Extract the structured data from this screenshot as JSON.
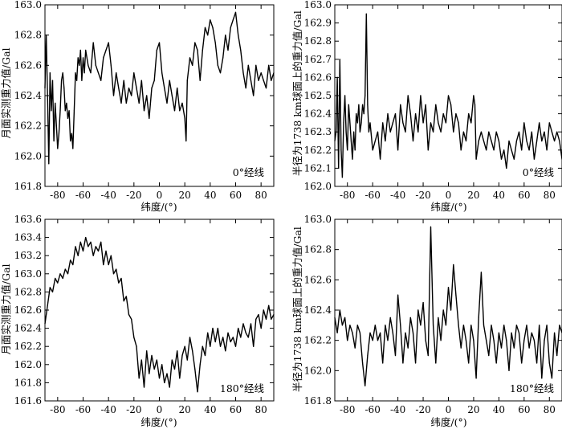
{
  "chart_data": [
    {
      "type": "line",
      "xlabel": "纬度/(°)",
      "ylabel": "月面实测重力值/Gal",
      "annotation": "0°经线",
      "annotation_position": "bottom-right",
      "xlim": [
        -90,
        90
      ],
      "ylim": [
        161.8,
        163.0
      ],
      "xticks": [
        -80,
        -60,
        -40,
        -20,
        0,
        20,
        40,
        60,
        80
      ],
      "yticks": [
        "161.8",
        "162.0",
        "162.2",
        "162.4",
        "162.6",
        "162.8",
        "163.0"
      ],
      "series": [
        {
          "x": [
            -90,
            -89,
            -88,
            -87,
            -86,
            -85,
            -84,
            -83,
            -82,
            -81,
            -80,
            -79,
            -78,
            -77,
            -76,
            -75,
            -74,
            -73,
            -72,
            -71,
            -70,
            -69,
            -68,
            -67,
            -66,
            -65,
            -64,
            -63,
            -62,
            -61,
            -60,
            -59,
            -58,
            -56,
            -54,
            -52,
            -50,
            -48,
            -46,
            -44,
            -42,
            -40,
            -38,
            -36,
            -34,
            -32,
            -30,
            -28,
            -26,
            -24,
            -22,
            -20,
            -18,
            -16,
            -14,
            -12,
            -10,
            -8,
            -6,
            -4,
            -2,
            0,
            2,
            4,
            6,
            8,
            10,
            12,
            14,
            16,
            18,
            20,
            21,
            22,
            24,
            26,
            28,
            30,
            32,
            34,
            36,
            38,
            40,
            42,
            44,
            46,
            48,
            50,
            52,
            54,
            56,
            58,
            60,
            62,
            64,
            66,
            68,
            70,
            72,
            74,
            76,
            78,
            80,
            82,
            84,
            86,
            88,
            90
          ],
          "values": [
            162.45,
            162.8,
            162.4,
            161.95,
            162.55,
            162.3,
            162.5,
            162.1,
            162.35,
            162.2,
            162.05,
            162.15,
            162.3,
            162.5,
            162.55,
            162.45,
            162.3,
            162.35,
            162.25,
            162.3,
            162.1,
            162.15,
            162.05,
            162.3,
            162.55,
            162.5,
            162.65,
            162.6,
            162.7,
            162.5,
            162.65,
            162.55,
            162.7,
            162.6,
            162.55,
            162.75,
            162.6,
            162.55,
            162.5,
            162.65,
            162.7,
            162.75,
            162.6,
            162.4,
            162.55,
            162.45,
            162.35,
            162.5,
            162.35,
            162.45,
            162.4,
            162.55,
            162.45,
            162.35,
            162.5,
            162.3,
            162.4,
            162.25,
            162.45,
            162.5,
            162.7,
            162.75,
            162.55,
            162.45,
            162.35,
            162.5,
            162.4,
            162.3,
            162.45,
            162.3,
            162.35,
            162.25,
            162.1,
            162.5,
            162.65,
            162.6,
            162.75,
            162.7,
            162.5,
            162.7,
            162.85,
            162.8,
            162.9,
            162.85,
            162.75,
            162.6,
            162.55,
            162.65,
            162.8,
            162.7,
            162.85,
            162.9,
            162.95,
            162.8,
            162.7,
            162.55,
            162.45,
            162.6,
            162.5,
            162.4,
            162.6,
            162.5,
            162.55,
            162.5,
            162.45,
            162.6,
            162.5,
            162.55
          ]
        }
      ]
    },
    {
      "type": "line",
      "xlabel": "纬度/(°)",
      "ylabel": "半径为1738 km球面上的重力值/Gal",
      "annotation": "0°经线",
      "annotation_position": "bottom-right",
      "xlim": [
        -90,
        90
      ],
      "ylim": [
        162.0,
        163.0
      ],
      "xticks": [
        -80,
        -60,
        -40,
        -20,
        0,
        20,
        40,
        60,
        80
      ],
      "yticks": [
        "162.0",
        "162.1",
        "162.2",
        "162.3",
        "162.4",
        "162.5",
        "162.6",
        "162.7",
        "162.8",
        "162.9",
        "163.0"
      ],
      "series": [
        {
          "x": [
            -90,
            -89,
            -88,
            -87,
            -86,
            -85,
            -84,
            -83,
            -82,
            -81,
            -80,
            -79,
            -78,
            -77,
            -76,
            -75,
            -74,
            -73,
            -72,
            -71,
            -70,
            -69,
            -68,
            -67,
            -66,
            -65,
            -64,
            -63,
            -62,
            -60,
            -58,
            -56,
            -54,
            -52,
            -50,
            -48,
            -46,
            -44,
            -42,
            -40,
            -38,
            -36,
            -34,
            -32,
            -30,
            -28,
            -26,
            -24,
            -22,
            -20,
            -18,
            -16,
            -14,
            -12,
            -10,
            -8,
            -6,
            -4,
            -2,
            0,
            2,
            4,
            6,
            8,
            10,
            12,
            14,
            16,
            18,
            20,
            21,
            22,
            24,
            26,
            28,
            30,
            32,
            34,
            36,
            38,
            40,
            42,
            44,
            46,
            48,
            50,
            52,
            54,
            56,
            58,
            60,
            62,
            64,
            66,
            68,
            70,
            72,
            74,
            76,
            78,
            80,
            82,
            84,
            86,
            88,
            90
          ],
          "values": [
            162.25,
            162.3,
            162.6,
            162.1,
            162.7,
            162.2,
            162.05,
            162.35,
            162.5,
            162.3,
            162.2,
            162.45,
            162.35,
            162.25,
            162.15,
            162.3,
            162.2,
            162.4,
            162.35,
            162.45,
            162.3,
            162.35,
            162.45,
            162.4,
            162.5,
            162.95,
            162.45,
            162.3,
            162.35,
            162.2,
            162.25,
            162.3,
            162.15,
            162.35,
            162.25,
            162.4,
            162.3,
            162.35,
            162.4,
            162.2,
            162.45,
            162.35,
            162.3,
            162.5,
            162.4,
            162.25,
            162.4,
            162.3,
            162.5,
            162.35,
            162.45,
            162.2,
            162.35,
            162.3,
            162.45,
            162.35,
            162.3,
            162.4,
            162.35,
            162.5,
            162.45,
            162.3,
            162.4,
            162.35,
            162.2,
            162.3,
            162.25,
            162.4,
            162.35,
            162.5,
            162.45,
            162.15,
            162.25,
            162.3,
            162.25,
            162.2,
            162.3,
            162.25,
            162.2,
            162.3,
            162.25,
            162.15,
            162.2,
            162.1,
            162.25,
            162.2,
            162.15,
            162.25,
            162.3,
            162.2,
            162.35,
            162.25,
            162.2,
            162.3,
            162.15,
            162.25,
            162.35,
            162.25,
            162.3,
            162.2,
            162.35,
            162.3,
            162.25,
            162.3,
            162.25,
            162.15
          ]
        }
      ]
    },
    {
      "type": "line",
      "xlabel": "纬度/(°)",
      "ylabel": "月面实测重力值/Gal",
      "annotation": "180°经线",
      "annotation_position": "bottom-right",
      "xlim": [
        -90,
        90
      ],
      "ylim": [
        161.6,
        163.6
      ],
      "xticks": [
        -80,
        -60,
        -40,
        -20,
        0,
        20,
        40,
        60,
        80
      ],
      "yticks": [
        "161.6",
        "161.8",
        "162.0",
        "162.2",
        "162.4",
        "162.6",
        "162.8",
        "163.0",
        "163.2",
        "163.4",
        "163.6"
      ],
      "series": [
        {
          "x": [
            -90,
            -88,
            -86,
            -84,
            -82,
            -80,
            -78,
            -76,
            -74,
            -72,
            -70,
            -68,
            -66,
            -64,
            -62,
            -60,
            -58,
            -56,
            -54,
            -52,
            -50,
            -48,
            -46,
            -44,
            -42,
            -40,
            -38,
            -36,
            -34,
            -32,
            -30,
            -28,
            -26,
            -24,
            -22,
            -20,
            -18,
            -16,
            -14,
            -12,
            -10,
            -8,
            -6,
            -4,
            -2,
            0,
            2,
            4,
            6,
            8,
            10,
            12,
            14,
            16,
            18,
            20,
            22,
            24,
            26,
            28,
            30,
            32,
            34,
            36,
            38,
            40,
            42,
            44,
            46,
            48,
            50,
            52,
            54,
            56,
            58,
            60,
            62,
            64,
            66,
            68,
            70,
            72,
            74,
            76,
            78,
            80,
            82,
            84,
            86,
            88,
            90
          ],
          "values": [
            162.45,
            162.65,
            162.85,
            162.8,
            162.95,
            162.9,
            163.0,
            162.95,
            163.05,
            163.0,
            163.15,
            163.1,
            163.3,
            163.2,
            163.35,
            163.25,
            163.4,
            163.3,
            163.35,
            163.2,
            163.3,
            163.25,
            163.35,
            163.1,
            163.25,
            163.1,
            163.2,
            163.0,
            163.05,
            162.9,
            162.95,
            162.7,
            162.75,
            162.55,
            162.5,
            162.3,
            162.2,
            161.85,
            162.05,
            161.75,
            162.15,
            161.9,
            162.1,
            161.95,
            162.05,
            161.85,
            162.0,
            161.8,
            161.9,
            161.75,
            162.05,
            161.95,
            162.15,
            161.85,
            162.1,
            162.2,
            162.05,
            162.3,
            162.15,
            161.95,
            161.7,
            162.0,
            162.2,
            162.1,
            162.35,
            162.2,
            162.4,
            162.25,
            162.4,
            162.2,
            162.3,
            162.15,
            162.35,
            162.25,
            162.3,
            162.2,
            162.4,
            162.3,
            162.45,
            162.35,
            162.3,
            162.45,
            162.2,
            162.5,
            162.55,
            162.4,
            162.6,
            162.5,
            162.65,
            162.5,
            162.55
          ]
        }
      ]
    },
    {
      "type": "line",
      "xlabel": "纬度/(°)",
      "ylabel": "半径为1738 km球面上的重力值/Gal",
      "annotation": "180°经线",
      "annotation_position": "bottom-right",
      "xlim": [
        -90,
        90
      ],
      "ylim": [
        161.8,
        163.0
      ],
      "xticks": [
        -80,
        -60,
        -40,
        -20,
        0,
        20,
        40,
        60,
        80
      ],
      "yticks": [
        "161.8",
        "162.0",
        "162.2",
        "162.4",
        "162.6",
        "162.8",
        "163.0"
      ],
      "series": [
        {
          "x": [
            -90,
            -88,
            -86,
            -84,
            -82,
            -80,
            -78,
            -76,
            -74,
            -72,
            -70,
            -68,
            -66,
            -64,
            -62,
            -60,
            -58,
            -56,
            -54,
            -52,
            -50,
            -48,
            -46,
            -44,
            -42,
            -40,
            -38,
            -36,
            -34,
            -32,
            -30,
            -28,
            -26,
            -24,
            -22,
            -20,
            -18,
            -16,
            -14,
            -12,
            -10,
            -8,
            -6,
            -4,
            -2,
            0,
            2,
            4,
            6,
            8,
            10,
            12,
            14,
            16,
            18,
            20,
            22,
            24,
            26,
            28,
            30,
            32,
            34,
            36,
            38,
            40,
            42,
            44,
            46,
            48,
            50,
            52,
            54,
            56,
            58,
            60,
            62,
            64,
            66,
            68,
            70,
            72,
            74,
            76,
            78,
            80,
            82,
            84,
            86,
            88,
            90
          ],
          "values": [
            162.35,
            162.25,
            162.4,
            162.3,
            162.35,
            162.2,
            162.3,
            162.25,
            162.15,
            162.3,
            162.25,
            162.05,
            161.9,
            162.1,
            162.25,
            162.2,
            162.3,
            162.2,
            162.25,
            162.05,
            162.3,
            162.2,
            162.35,
            162.25,
            162.1,
            162.5,
            162.3,
            162.05,
            162.25,
            162.15,
            162.35,
            162.25,
            162.05,
            162.4,
            162.3,
            162.45,
            162.2,
            162.1,
            162.95,
            162.3,
            162.05,
            162.35,
            162.2,
            162.4,
            162.3,
            162.55,
            162.4,
            162.7,
            162.5,
            162.3,
            162.15,
            162.3,
            162.2,
            162.05,
            162.3,
            162.2,
            161.95,
            162.35,
            162.65,
            162.3,
            162.2,
            162.1,
            162.3,
            162.2,
            162.05,
            162.25,
            162.15,
            162.3,
            162.2,
            162.0,
            162.25,
            162.15,
            162.3,
            162.25,
            162.05,
            162.2,
            162.3,
            162.15,
            162.25,
            162.2,
            162.05,
            162.3,
            161.95,
            162.2,
            162.3,
            162.05,
            161.95,
            162.25,
            162.1,
            162.3,
            162.25
          ]
        }
      ]
    }
  ]
}
